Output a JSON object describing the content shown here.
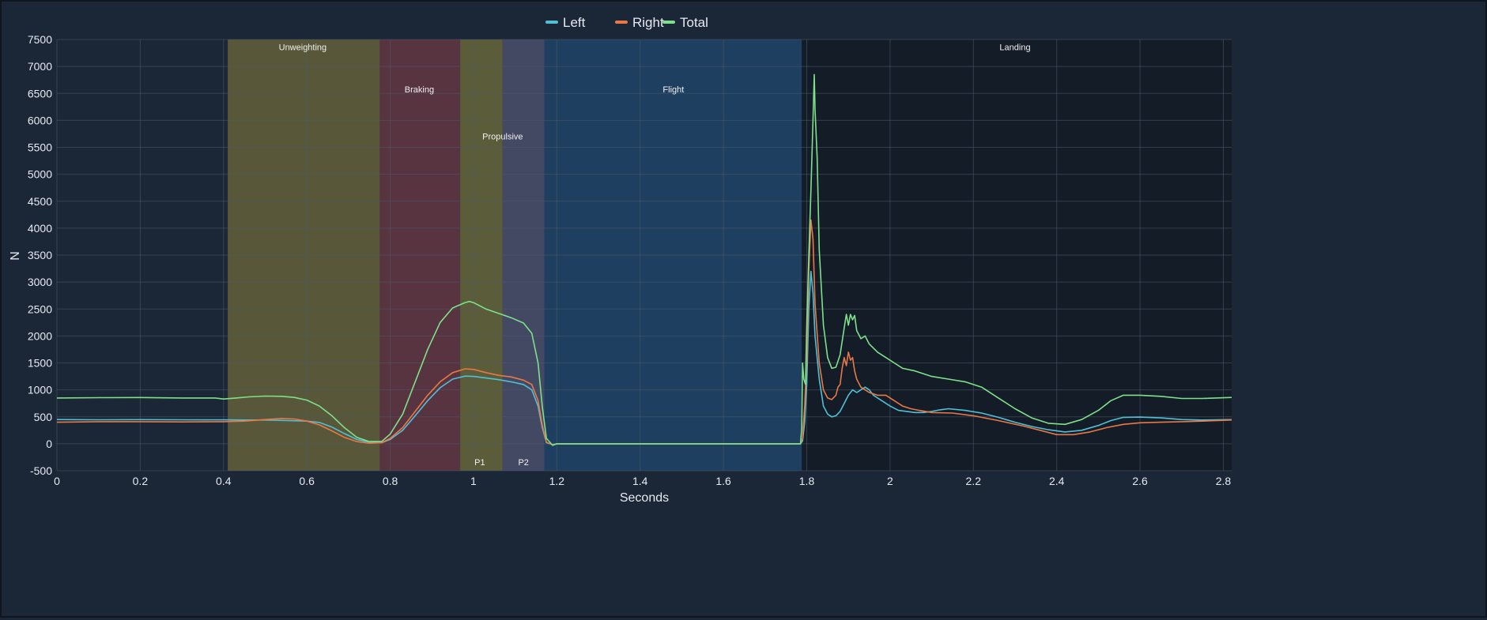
{
  "chart_data": {
    "type": "line",
    "title": "",
    "xlabel": "Seconds",
    "ylabel": "N",
    "xlim": [
      0,
      2.82
    ],
    "ylim": [
      -500,
      7500
    ],
    "x_ticks": [
      0,
      0.2,
      0.4,
      0.6,
      0.8,
      1,
      1.2,
      1.4,
      1.6,
      1.8,
      2,
      2.2,
      2.4,
      2.6,
      2.8
    ],
    "x_tick_labels": [
      "0",
      "0.2",
      "0.4",
      "0.6",
      "0.8",
      "1",
      "1.2",
      "1.4",
      "1.6",
      "1.8",
      "2",
      "2.2",
      "2.4",
      "2.6",
      "2.8"
    ],
    "y_ticks": [
      -500,
      0,
      500,
      1000,
      1500,
      2000,
      2500,
      3000,
      3500,
      4000,
      4500,
      5000,
      5500,
      6000,
      6500,
      7000,
      7500
    ],
    "y_tick_labels": [
      "-500",
      "0",
      "500",
      "1000",
      "1500",
      "2000",
      "2500",
      "3000",
      "3500",
      "4000",
      "4500",
      "5000",
      "5500",
      "6000",
      "6500",
      "7000",
      "7500"
    ],
    "grid": true,
    "legend_position": "top-center",
    "phases": [
      {
        "label": "Unweighting",
        "start": 0.41,
        "end": 0.775,
        "color": "#5c5a3a",
        "label_x": 0.59,
        "label_y": 7300
      },
      {
        "label": "Braking",
        "start": 0.775,
        "end": 0.968,
        "color": "#5c3542",
        "label_x": 0.87,
        "label_y": 6520
      },
      {
        "label": "",
        "start": 0.968,
        "end": 1.07,
        "color": "#5f5f3a",
        "label_x": null,
        "label_y": null
      },
      {
        "label": "Propulsive",
        "start": 0.968,
        "end": 1.17,
        "color": "",
        "label_x": 1.07,
        "label_y": 5650
      },
      {
        "label": "",
        "start": 1.07,
        "end": 1.17,
        "color": "#474b66",
        "label_x": null,
        "label_y": null
      },
      {
        "label": "P1",
        "start": 0.968,
        "end": 1.07,
        "color": "",
        "label_x": 1.015,
        "label_y": -400
      },
      {
        "label": "P2",
        "start": 1.07,
        "end": 1.17,
        "color": "",
        "label_x": 1.12,
        "label_y": -400
      },
      {
        "label": "Flight",
        "start": 1.17,
        "end": 1.788,
        "color": "#1f4063",
        "label_x": 1.48,
        "label_y": 6520
      },
      {
        "label": "Landing",
        "start": 1.788,
        "end": 2.82,
        "color": "#141b27",
        "label_x": 2.3,
        "label_y": 7300
      }
    ],
    "series": [
      {
        "name": "Left",
        "color": "#4fc0d8",
        "points": [
          [
            0,
            450
          ],
          [
            0.1,
            445
          ],
          [
            0.2,
            448
          ],
          [
            0.3,
            445
          ],
          [
            0.4,
            443
          ],
          [
            0.45,
            440
          ],
          [
            0.5,
            440
          ],
          [
            0.55,
            432
          ],
          [
            0.6,
            420
          ],
          [
            0.63,
            395
          ],
          [
            0.66,
            310
          ],
          [
            0.69,
            190
          ],
          [
            0.72,
            80
          ],
          [
            0.75,
            30
          ],
          [
            0.78,
            20
          ],
          [
            0.8,
            80
          ],
          [
            0.83,
            250
          ],
          [
            0.86,
            520
          ],
          [
            0.89,
            800
          ],
          [
            0.92,
            1040
          ],
          [
            0.95,
            1200
          ],
          [
            0.98,
            1255
          ],
          [
            1.0,
            1250
          ],
          [
            1.03,
            1220
          ],
          [
            1.06,
            1190
          ],
          [
            1.09,
            1150
          ],
          [
            1.12,
            1100
          ],
          [
            1.14,
            1000
          ],
          [
            1.155,
            700
          ],
          [
            1.165,
            300
          ],
          [
            1.175,
            20
          ],
          [
            1.19,
            -15
          ],
          [
            1.2,
            0
          ],
          [
            1.3,
            0
          ],
          [
            1.5,
            0
          ],
          [
            1.7,
            0
          ],
          [
            1.785,
            0
          ],
          [
            1.79,
            50
          ],
          [
            1.795,
            400
          ],
          [
            1.8,
            1100
          ],
          [
            1.805,
            2500
          ],
          [
            1.81,
            3200
          ],
          [
            1.815,
            2800
          ],
          [
            1.82,
            2000
          ],
          [
            1.83,
            1200
          ],
          [
            1.84,
            700
          ],
          [
            1.85,
            550
          ],
          [
            1.86,
            500
          ],
          [
            1.87,
            520
          ],
          [
            1.88,
            600
          ],
          [
            1.89,
            750
          ],
          [
            1.9,
            900
          ],
          [
            1.91,
            1000
          ],
          [
            1.92,
            950
          ],
          [
            1.93,
            1000
          ],
          [
            1.94,
            1050
          ],
          [
            1.95,
            1000
          ],
          [
            1.96,
            900
          ],
          [
            1.98,
            800
          ],
          [
            2.0,
            700
          ],
          [
            2.02,
            620
          ],
          [
            2.04,
            600
          ],
          [
            2.06,
            580
          ],
          [
            2.08,
            580
          ],
          [
            2.1,
            600
          ],
          [
            2.12,
            630
          ],
          [
            2.14,
            650
          ],
          [
            2.18,
            620
          ],
          [
            2.22,
            570
          ],
          [
            2.26,
            490
          ],
          [
            2.3,
            400
          ],
          [
            2.34,
            320
          ],
          [
            2.38,
            260
          ],
          [
            2.42,
            220
          ],
          [
            2.46,
            250
          ],
          [
            2.5,
            340
          ],
          [
            2.53,
            430
          ],
          [
            2.56,
            490
          ],
          [
            2.6,
            495
          ],
          [
            2.65,
            480
          ],
          [
            2.7,
            450
          ],
          [
            2.75,
            440
          ],
          [
            2.82,
            450
          ]
        ]
      },
      {
        "name": "Right",
        "color": "#e87845",
        "points": [
          [
            0,
            400
          ],
          [
            0.1,
            410
          ],
          [
            0.2,
            410
          ],
          [
            0.3,
            405
          ],
          [
            0.4,
            410
          ],
          [
            0.45,
            420
          ],
          [
            0.5,
            450
          ],
          [
            0.54,
            470
          ],
          [
            0.57,
            460
          ],
          [
            0.6,
            420
          ],
          [
            0.63,
            350
          ],
          [
            0.66,
            240
          ],
          [
            0.69,
            120
          ],
          [
            0.72,
            40
          ],
          [
            0.75,
            10
          ],
          [
            0.78,
            20
          ],
          [
            0.8,
            100
          ],
          [
            0.83,
            300
          ],
          [
            0.86,
            600
          ],
          [
            0.89,
            900
          ],
          [
            0.92,
            1150
          ],
          [
            0.95,
            1320
          ],
          [
            0.98,
            1390
          ],
          [
            1.0,
            1380
          ],
          [
            1.03,
            1320
          ],
          [
            1.06,
            1270
          ],
          [
            1.09,
            1240
          ],
          [
            1.12,
            1180
          ],
          [
            1.14,
            1100
          ],
          [
            1.155,
            800
          ],
          [
            1.165,
            350
          ],
          [
            1.175,
            30
          ],
          [
            1.19,
            -20
          ],
          [
            1.2,
            0
          ],
          [
            1.3,
            0
          ],
          [
            1.5,
            0
          ],
          [
            1.7,
            0
          ],
          [
            1.785,
            0
          ],
          [
            1.79,
            100
          ],
          [
            1.795,
            700
          ],
          [
            1.8,
            1600
          ],
          [
            1.805,
            3200
          ],
          [
            1.81,
            4150
          ],
          [
            1.815,
            3800
          ],
          [
            1.82,
            2600
          ],
          [
            1.83,
            1500
          ],
          [
            1.84,
            1000
          ],
          [
            1.85,
            850
          ],
          [
            1.86,
            820
          ],
          [
            1.87,
            900
          ],
          [
            1.875,
            1050
          ],
          [
            1.88,
            1100
          ],
          [
            1.885,
            1400
          ],
          [
            1.89,
            1600
          ],
          [
            1.895,
            1450
          ],
          [
            1.9,
            1700
          ],
          [
            1.905,
            1550
          ],
          [
            1.91,
            1600
          ],
          [
            1.915,
            1350
          ],
          [
            1.92,
            1200
          ],
          [
            1.93,
            1050
          ],
          [
            1.94,
            1000
          ],
          [
            1.95,
            950
          ],
          [
            1.97,
            900
          ],
          [
            1.99,
            900
          ],
          [
            2.01,
            800
          ],
          [
            2.03,
            700
          ],
          [
            2.05,
            650
          ],
          [
            2.07,
            620
          ],
          [
            2.1,
            580
          ],
          [
            2.15,
            570
          ],
          [
            2.2,
            520
          ],
          [
            2.26,
            430
          ],
          [
            2.32,
            330
          ],
          [
            2.36,
            250
          ],
          [
            2.4,
            170
          ],
          [
            2.44,
            170
          ],
          [
            2.48,
            220
          ],
          [
            2.52,
            300
          ],
          [
            2.56,
            360
          ],
          [
            2.6,
            390
          ],
          [
            2.65,
            400
          ],
          [
            2.7,
            410
          ],
          [
            2.75,
            420
          ],
          [
            2.82,
            440
          ]
        ]
      },
      {
        "name": "Total",
        "color": "#7fe08a",
        "points": [
          [
            0,
            850
          ],
          [
            0.1,
            855
          ],
          [
            0.2,
            858
          ],
          [
            0.3,
            850
          ],
          [
            0.38,
            850
          ],
          [
            0.4,
            830
          ],
          [
            0.43,
            850
          ],
          [
            0.46,
            870
          ],
          [
            0.5,
            885
          ],
          [
            0.54,
            880
          ],
          [
            0.57,
            860
          ],
          [
            0.6,
            810
          ],
          [
            0.63,
            700
          ],
          [
            0.66,
            520
          ],
          [
            0.69,
            300
          ],
          [
            0.72,
            120
          ],
          [
            0.75,
            40
          ],
          [
            0.78,
            45
          ],
          [
            0.8,
            180
          ],
          [
            0.83,
            550
          ],
          [
            0.86,
            1150
          ],
          [
            0.89,
            1750
          ],
          [
            0.92,
            2250
          ],
          [
            0.95,
            2520
          ],
          [
            0.98,
            2620
          ],
          [
            0.99,
            2640
          ],
          [
            1.0,
            2620
          ],
          [
            1.03,
            2500
          ],
          [
            1.06,
            2420
          ],
          [
            1.09,
            2340
          ],
          [
            1.12,
            2240
          ],
          [
            1.14,
            2050
          ],
          [
            1.155,
            1500
          ],
          [
            1.165,
            700
          ],
          [
            1.175,
            100
          ],
          [
            1.19,
            -30
          ],
          [
            1.2,
            0
          ],
          [
            1.3,
            0
          ],
          [
            1.5,
            0
          ],
          [
            1.7,
            0
          ],
          [
            1.785,
            0
          ],
          [
            1.788,
            300
          ],
          [
            1.79,
            1500
          ],
          [
            1.793,
            1200
          ],
          [
            1.797,
            1100
          ],
          [
            1.8,
            2200
          ],
          [
            1.805,
            3500
          ],
          [
            1.81,
            4700
          ],
          [
            1.815,
            6000
          ],
          [
            1.818,
            6850
          ],
          [
            1.82,
            6200
          ],
          [
            1.825,
            5300
          ],
          [
            1.83,
            3600
          ],
          [
            1.84,
            2200
          ],
          [
            1.85,
            1600
          ],
          [
            1.86,
            1400
          ],
          [
            1.87,
            1420
          ],
          [
            1.88,
            1650
          ],
          [
            1.885,
            1900
          ],
          [
            1.89,
            2150
          ],
          [
            1.895,
            2400
          ],
          [
            1.9,
            2200
          ],
          [
            1.905,
            2400
          ],
          [
            1.91,
            2300
          ],
          [
            1.915,
            2380
          ],
          [
            1.92,
            2100
          ],
          [
            1.93,
            1950
          ],
          [
            1.94,
            2000
          ],
          [
            1.95,
            1850
          ],
          [
            1.97,
            1700
          ],
          [
            1.99,
            1600
          ],
          [
            2.01,
            1500
          ],
          [
            2.03,
            1400
          ],
          [
            2.06,
            1350
          ],
          [
            2.1,
            1250
          ],
          [
            2.14,
            1200
          ],
          [
            2.18,
            1150
          ],
          [
            2.22,
            1050
          ],
          [
            2.26,
            850
          ],
          [
            2.3,
            650
          ],
          [
            2.34,
            480
          ],
          [
            2.38,
            380
          ],
          [
            2.42,
            360
          ],
          [
            2.46,
            450
          ],
          [
            2.5,
            620
          ],
          [
            2.53,
            800
          ],
          [
            2.56,
            900
          ],
          [
            2.6,
            900
          ],
          [
            2.65,
            880
          ],
          [
            2.7,
            840
          ],
          [
            2.75,
            840
          ],
          [
            2.82,
            860
          ]
        ]
      }
    ]
  }
}
